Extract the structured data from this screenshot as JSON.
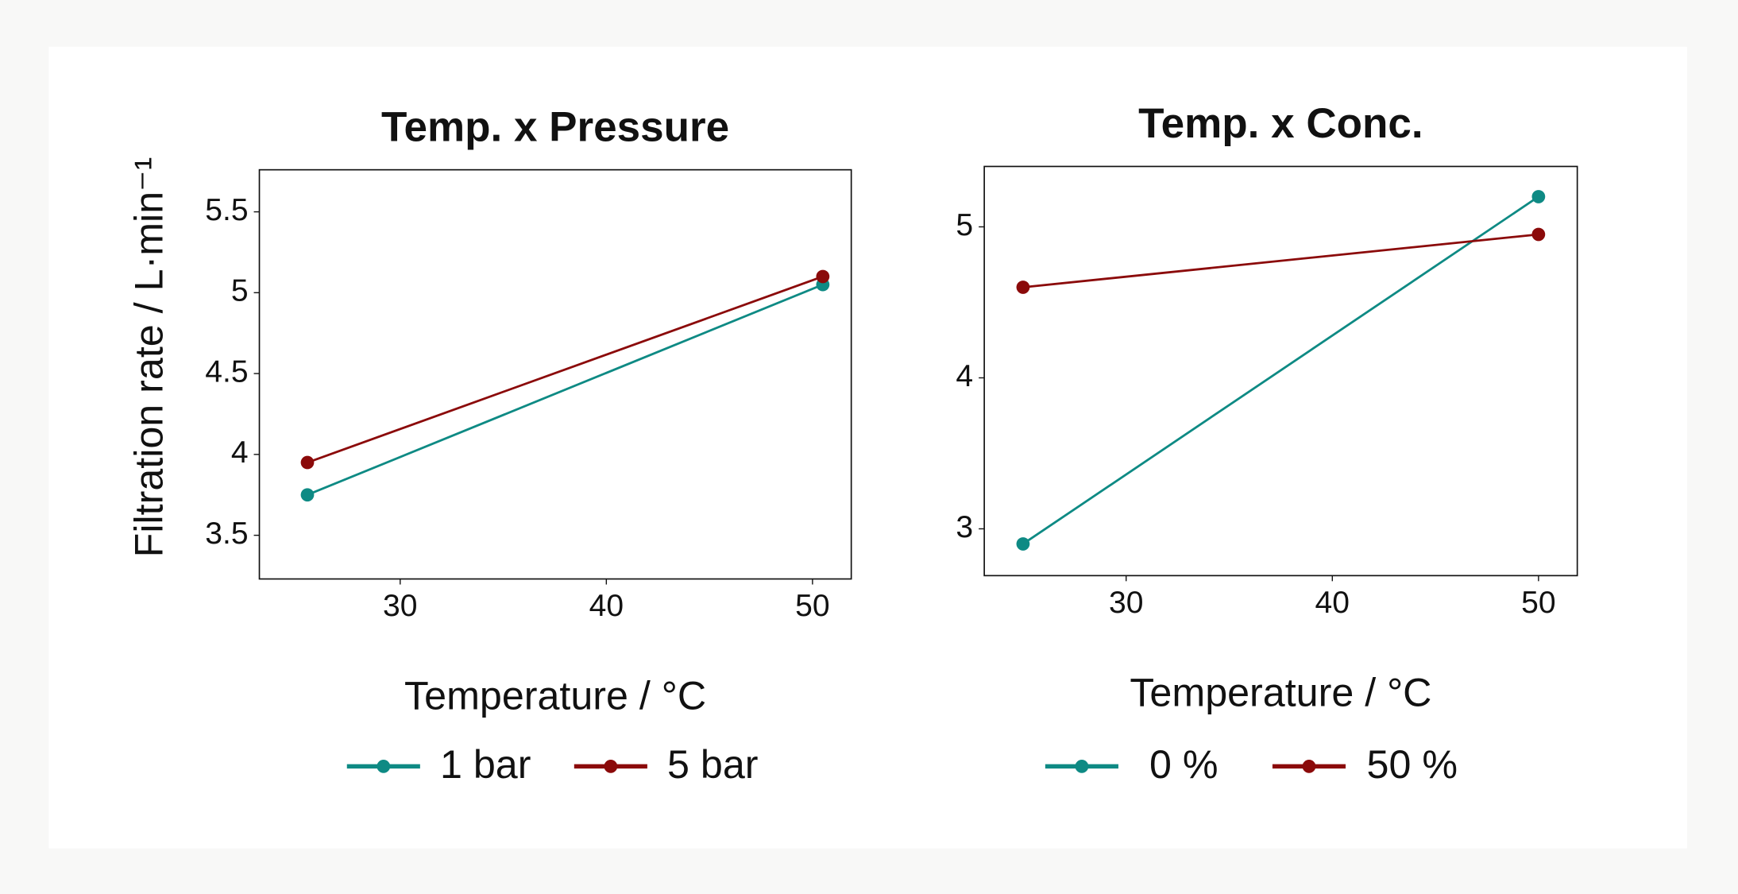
{
  "chart_data": [
    {
      "type": "line",
      "title": "Temp. x Pressure",
      "x_label": "Temperature / °C",
      "y_label": "Filtration rate / L·min⁻¹",
      "x": [
        25.5,
        50.5
      ],
      "series": [
        {
          "name": "1 bar",
          "color": "#0e8a84",
          "values": [
            3.75,
            5.05
          ]
        },
        {
          "name": "5 bar",
          "color": "#8b0a0a",
          "values": [
            3.95,
            5.1
          ]
        }
      ],
      "xlim": [
        23.17,
        51.88
      ],
      "xticks": [
        30,
        40,
        50
      ],
      "ylim": [
        3.23,
        5.76
      ],
      "yticks": [
        3.5,
        4,
        4.5,
        5,
        5.5
      ]
    },
    {
      "type": "line",
      "title": "Temp. x Conc.",
      "x_label": "Temperature / °C",
      "x": [
        25,
        50
      ],
      "series": [
        {
          "name": "0 %",
          "color": "#0e8a84",
          "values": [
            2.9,
            5.2
          ]
        },
        {
          "name": "50 %",
          "color": "#8b0a0a",
          "values": [
            4.6,
            4.95
          ]
        }
      ],
      "xlim": [
        23.12,
        51.88
      ],
      "xticks": [
        30,
        40,
        50
      ],
      "ylim": [
        2.69,
        5.4
      ],
      "yticks": [
        3,
        4,
        5
      ]
    }
  ]
}
